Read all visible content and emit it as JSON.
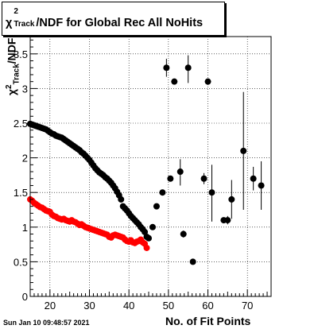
{
  "chart_data": {
    "type": "scatter",
    "title": {
      "symbol": "χ",
      "sup": "2",
      "sub": "Track",
      "rest": "/NDF for Global Rec All NoHits"
    },
    "xlabel": "No. of Fit Points",
    "ylabel": {
      "symbol": "χ",
      "sup": "2",
      "sub": "Track",
      "rest": "/NDF"
    },
    "xlim": [
      15,
      76
    ],
    "ylim": [
      0,
      3.75
    ],
    "x_ticks": [
      20,
      30,
      40,
      50,
      60,
      70
    ],
    "y_ticks": [
      0,
      0.5,
      1,
      1.5,
      2,
      2.5,
      3,
      3.5
    ],
    "y_tick_labels": [
      "0",
      "0.5",
      "1",
      "1.5",
      "2",
      "2.5",
      "3",
      "3.5"
    ],
    "colors": {
      "black_series": "#000000",
      "red_series": "#ff0000"
    },
    "series": [
      {
        "color": "#000000",
        "points": [
          [
            15.0,
            2.49
          ],
          [
            15.5,
            2.48
          ],
          [
            16.0,
            2.47
          ],
          [
            16.5,
            2.46
          ],
          [
            17.0,
            2.45
          ],
          [
            17.5,
            2.44
          ],
          [
            18.0,
            2.43
          ],
          [
            18.5,
            2.42
          ],
          [
            19.0,
            2.41
          ],
          [
            19.5,
            2.39
          ],
          [
            20.0,
            2.37
          ],
          [
            20.5,
            2.35
          ],
          [
            21.0,
            2.34
          ],
          [
            21.5,
            2.32
          ],
          [
            22.0,
            2.31
          ],
          [
            22.5,
            2.3
          ],
          [
            23.0,
            2.29
          ],
          [
            23.5,
            2.27
          ],
          [
            24.0,
            2.25
          ],
          [
            24.5,
            2.23
          ],
          [
            25.0,
            2.21
          ],
          [
            25.5,
            2.19
          ],
          [
            26.0,
            2.17
          ],
          [
            26.5,
            2.15
          ],
          [
            27.0,
            2.13
          ],
          [
            27.5,
            2.11
          ],
          [
            28.0,
            2.08
          ],
          [
            28.5,
            2.06
          ],
          [
            29.0,
            2.03
          ],
          [
            29.5,
            2.0
          ],
          [
            30.0,
            1.97
          ],
          [
            30.5,
            1.93
          ],
          [
            31.0,
            1.89
          ],
          [
            31.5,
            1.85
          ],
          [
            32.0,
            1.82
          ],
          [
            32.5,
            1.79
          ],
          [
            33.0,
            1.77
          ],
          [
            33.5,
            1.75
          ],
          [
            34.0,
            1.72
          ],
          [
            34.5,
            1.7
          ],
          [
            35.0,
            1.67
          ],
          [
            35.5,
            1.64
          ],
          [
            36.0,
            1.6
          ],
          [
            36.5,
            1.56
          ],
          [
            37.0,
            1.51
          ],
          [
            37.5,
            1.46
          ],
          [
            38.0,
            1.4
          ],
          [
            38.5,
            1.3
          ],
          [
            39.0,
            1.27
          ],
          [
            39.5,
            1.24
          ],
          [
            40.0,
            1.2
          ],
          [
            40.5,
            1.16
          ],
          [
            41.0,
            1.13
          ],
          [
            41.5,
            1.1
          ],
          [
            42.0,
            1.07
          ],
          [
            42.5,
            1.04
          ],
          [
            43.0,
            1.0
          ],
          [
            43.5,
            0.97
          ],
          [
            44.0,
            0.93
          ],
          [
            44.5,
            0.86
          ],
          [
            45.0,
            0.84
          ],
          [
            46.0,
            1.0
          ],
          [
            47.0,
            1.3
          ],
          [
            48.5,
            1.5
          ],
          [
            49.5,
            3.3
          ],
          [
            50.5,
            1.7
          ],
          [
            51.5,
            3.1
          ],
          [
            53.0,
            1.8
          ],
          [
            53.8,
            0.9
          ],
          [
            55.0,
            3.3
          ],
          [
            56.2,
            0.5
          ],
          [
            59.0,
            1.7
          ],
          [
            60.0,
            3.1
          ],
          [
            61.0,
            1.5
          ],
          [
            64.0,
            1.1
          ],
          [
            65.0,
            1.1
          ],
          [
            66.0,
            1.4
          ],
          [
            69.0,
            2.1
          ],
          [
            71.5,
            1.7
          ],
          [
            73.5,
            1.6
          ]
        ]
      },
      {
        "color": "#ff0000",
        "points": [
          [
            15.0,
            1.4
          ],
          [
            15.5,
            1.38
          ],
          [
            16.0,
            1.35
          ],
          [
            16.5,
            1.33
          ],
          [
            17.0,
            1.31
          ],
          [
            17.5,
            1.29
          ],
          [
            18.0,
            1.28
          ],
          [
            18.5,
            1.26
          ],
          [
            19.0,
            1.24
          ],
          [
            19.5,
            1.23
          ],
          [
            20.0,
            1.22
          ],
          [
            20.5,
            1.18
          ],
          [
            21.0,
            1.16
          ],
          [
            21.5,
            1.15
          ],
          [
            22.0,
            1.13
          ],
          [
            22.5,
            1.12
          ],
          [
            23.0,
            1.11
          ],
          [
            23.5,
            1.12
          ],
          [
            24.0,
            1.1
          ],
          [
            24.5,
            1.09
          ],
          [
            25.0,
            1.08
          ],
          [
            25.5,
            1.1
          ],
          [
            26.0,
            1.08
          ],
          [
            26.5,
            1.07
          ],
          [
            27.0,
            1.05
          ],
          [
            27.5,
            1.03
          ],
          [
            28.0,
            1.04
          ],
          [
            28.5,
            1.02
          ],
          [
            29.0,
            1.0
          ],
          [
            29.5,
            0.99
          ],
          [
            30.0,
            0.98
          ],
          [
            30.5,
            0.97
          ],
          [
            31.0,
            0.96
          ],
          [
            31.5,
            0.95
          ],
          [
            32.0,
            0.94
          ],
          [
            32.5,
            0.93
          ],
          [
            33.0,
            0.92
          ],
          [
            33.5,
            0.91
          ],
          [
            34.0,
            0.9
          ],
          [
            34.5,
            0.89
          ],
          [
            35.0,
            0.86
          ],
          [
            35.5,
            0.85
          ],
          [
            36.0,
            0.88
          ],
          [
            36.5,
            0.89
          ],
          [
            37.0,
            0.88
          ],
          [
            37.5,
            0.87
          ],
          [
            38.0,
            0.86
          ],
          [
            38.5,
            0.85
          ],
          [
            39.0,
            0.82
          ],
          [
            39.5,
            0.8
          ],
          [
            40.0,
            0.79
          ],
          [
            40.5,
            0.81
          ],
          [
            41.0,
            0.78
          ],
          [
            41.5,
            0.77
          ],
          [
            42.0,
            0.79
          ],
          [
            42.5,
            0.8
          ],
          [
            43.0,
            0.82
          ],
          [
            43.5,
            0.78
          ],
          [
            44.0,
            0.76
          ],
          [
            44.5,
            0.7
          ]
        ]
      }
    ],
    "error_bars": [
      {
        "x": 49.5,
        "y": 3.3,
        "ylow": 3.17,
        "yhigh": 3.43
      },
      {
        "x": 53.0,
        "y": 1.8,
        "ylow": 1.6,
        "yhigh": 1.98
      },
      {
        "x": 53.8,
        "y": 0.9,
        "ylow": 0.85,
        "yhigh": 0.95
      },
      {
        "x": 55.0,
        "y": 3.3,
        "ylow": 3.08,
        "yhigh": 3.48
      },
      {
        "x": 59.0,
        "y": 1.7,
        "ylow": 1.62,
        "yhigh": 1.78
      },
      {
        "x": 61.0,
        "y": 1.5,
        "ylow": 1.08,
        "yhigh": 1.9
      },
      {
        "x": 65.0,
        "y": 1.1,
        "ylow": 1.04,
        "yhigh": 1.16
      },
      {
        "x": 66.0,
        "y": 1.4,
        "ylow": 1.12,
        "yhigh": 1.68
      },
      {
        "x": 69.0,
        "y": 2.1,
        "ylow": 1.25,
        "yhigh": 2.95
      },
      {
        "x": 71.5,
        "y": 1.7,
        "ylow": 1.53,
        "yhigh": 1.87
      },
      {
        "x": 73.5,
        "y": 1.6,
        "ylow": 1.25,
        "yhigh": 1.95
      }
    ]
  },
  "footer": {
    "date": "Sun Jan 10 09:48:57 2021"
  }
}
